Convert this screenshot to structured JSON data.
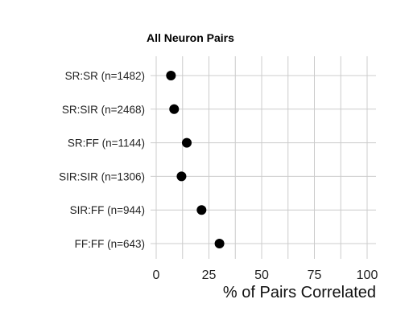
{
  "chart_data": {
    "type": "scatter",
    "title": "All Neuron Pairs",
    "xlabel": "% of Pairs Correlated",
    "ylabel": "",
    "xlim": [
      0,
      100
    ],
    "xticks": [
      "0",
      "25",
      "50",
      "75",
      "100"
    ],
    "grid": true,
    "categories": [
      "SR:SR (n=1482)",
      "SR:SIR (n=2468)",
      "SR:FF (n=1144)",
      "SIR:SIR (n=1306)",
      "SIR:FF (n=944)",
      "FF:FF (n=643)"
    ],
    "values": [
      7,
      8.5,
      14.5,
      12,
      21.5,
      30
    ],
    "marker_color": "#000000"
  }
}
